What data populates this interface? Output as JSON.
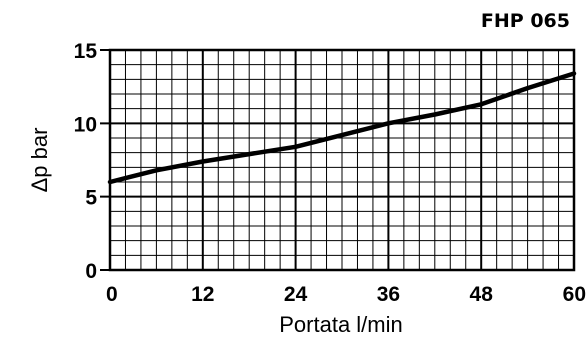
{
  "chart_data": {
    "type": "line",
    "title": "FHP 065",
    "xlabel": "Portata l/min",
    "ylabel": "Δp bar",
    "xlim": [
      0,
      60
    ],
    "ylim": [
      0,
      15
    ],
    "x_ticks": [
      0,
      12,
      24,
      36,
      48,
      60
    ],
    "y_ticks": [
      0,
      5,
      10,
      15
    ],
    "grid": true,
    "series": [
      {
        "x": [
          0,
          6,
          12,
          18,
          24,
          30,
          36,
          42,
          48,
          54,
          60
        ],
        "values": [
          6.0,
          6.8,
          7.4,
          7.9,
          8.4,
          9.2,
          10.0,
          10.6,
          11.3,
          12.4,
          13.4
        ]
      }
    ]
  }
}
